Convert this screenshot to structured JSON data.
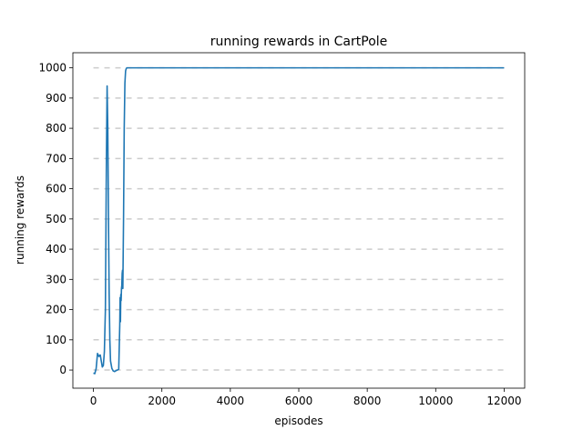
{
  "chart_data": {
    "type": "line",
    "title": "running rewards in CartPole",
    "xlabel": "episodes",
    "ylabel": "running rewards",
    "xlim": [
      -600,
      12600
    ],
    "ylim": [
      -60,
      1050
    ],
    "xticks": [
      0,
      2000,
      4000,
      6000,
      8000,
      10000,
      12000
    ],
    "yticks": [
      0,
      100,
      200,
      300,
      400,
      500,
      600,
      700,
      800,
      900,
      1000
    ],
    "grid": {
      "axis": "y",
      "style": "dashed",
      "color": "#cccccc"
    },
    "series": [
      {
        "color": "#1f77b4",
        "x": [
          0,
          40,
          80,
          120,
          160,
          200,
          230,
          260,
          290,
          320,
          350,
          380,
          400,
          420,
          440,
          460,
          480,
          500,
          540,
          580,
          620,
          660,
          700,
          740,
          770,
          780,
          790,
          800,
          810,
          820,
          830,
          840,
          850,
          860,
          880,
          900,
          920,
          940,
          960,
          980,
          1000,
          1100,
          1500,
          2000,
          4000,
          8000,
          12000
        ],
        "y": [
          -10,
          -12,
          5,
          55,
          45,
          50,
          30,
          10,
          15,
          60,
          200,
          700,
          940,
          800,
          500,
          250,
          100,
          30,
          5,
          -3,
          -5,
          -2,
          0,
          3,
          150,
          240,
          160,
          250,
          230,
          270,
          280,
          320,
          330,
          270,
          500,
          800,
          950,
          990,
          998,
          1000,
          1000,
          1000,
          1000,
          1000,
          1000,
          1000,
          1000
        ]
      }
    ]
  }
}
